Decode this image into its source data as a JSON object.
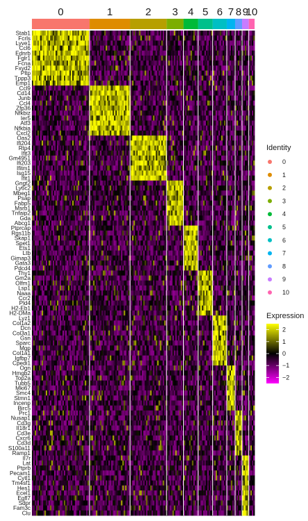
{
  "chart_data": {
    "type": "heatmap",
    "title": "",
    "xlabel": "",
    "ylabel": "",
    "clusters": [
      {
        "label": "0",
        "color": "#F8766D",
        "width_fraction": 0.249
      },
      {
        "label": "1",
        "color": "#DE8C00",
        "width_fraction": 0.175
      },
      {
        "label": "2",
        "color": "#B79F00",
        "width_fraction": 0.158
      },
      {
        "label": "3",
        "color": "#7CAE00",
        "width_fraction": 0.073
      },
      {
        "label": "4",
        "color": "#00BA38",
        "width_fraction": 0.063
      },
      {
        "label": "5",
        "color": "#00C08B",
        "width_fraction": 0.063
      },
      {
        "label": "6",
        "color": "#00BFC4",
        "width_fraction": 0.061
      },
      {
        "label": "7",
        "color": "#00B4F0",
        "width_fraction": 0.036
      },
      {
        "label": "8",
        "color": "#619CFF",
        "width_fraction": 0.03
      },
      {
        "label": "9",
        "color": "#C77CFF",
        "width_fraction": 0.029
      },
      {
        "label": "10",
        "color": "#FF64B0",
        "width_fraction": 0.025
      }
    ],
    "gene_groups": [
      {
        "cluster": "0",
        "genes": [
          "Stab1",
          "Fcrls",
          "Lyve1",
          "Ccl6",
          "Ednrb",
          "Fglr1",
          "Fcna",
          "Fxyd2",
          "Pltp",
          "Tppp3",
          "Emp1"
        ]
      },
      {
        "cluster": "1",
        "genes": [
          "Ccl9",
          "Cd14",
          "Junb",
          "Ccl4",
          "Zfp36",
          "Nfkbiz",
          "Ier5",
          "Atf3",
          "Nfkbia",
          "Cxcl2"
        ]
      },
      {
        "cluster": "2",
        "genes": [
          "Oas2",
          "Ifi204",
          "Rtp4",
          "Ifit3",
          "Gm4951",
          "Ifi203",
          "Ifitm1",
          "Isg15",
          "Ifit1"
        ]
      },
      {
        "cluster": "3",
        "genes": [
          "Gngt2",
          "Ly6c2",
          "Mbeg1",
          "Psap",
          "Fabp5",
          "Msrb1",
          "Tnfaip2",
          "Gda",
          "Abcg1"
        ]
      },
      {
        "cluster": "4",
        "genes": [
          "Ptprcap",
          "Rgs11b",
          "Skap1",
          "Spet1",
          "Ets1",
          "Ltb",
          "Gimap3",
          "Gata3",
          "Pdcd4"
        ]
      },
      {
        "cluster": "5",
        "genes": [
          "Thy1",
          "Gm2a",
          "Olfm1",
          "Lsp1",
          "Naaa",
          "Ccr2",
          "Pld4",
          "H2-Eb1",
          "H2-DMa"
        ]
      },
      {
        "cluster": "6",
        "genes": [
          "Lyz1",
          "Col1a2",
          "Dcn",
          "Col3a1",
          "Gsn",
          "Sparc",
          "Mgp",
          "Col1a1",
          "Igfbp7",
          "Cpedi1"
        ]
      },
      {
        "cluster": "7",
        "genes": [
          "Ogn",
          "Hmgb2",
          "Top2a",
          "Tubb5",
          "Mki67",
          "Smc4",
          "Stmn1",
          "Incenp",
          "Birc5"
        ]
      },
      {
        "cluster": "8",
        "genes": [
          "Prc1",
          "Nusap1",
          "Cd3g",
          "Il18r1",
          "Cd3e",
          "Cxcr6",
          "Cd3d",
          "S100a11",
          "Ramp1"
        ]
      },
      {
        "cluster": "9",
        "genes": [
          "Il7r",
          "Lat",
          "Ptprb",
          "Pecam1",
          "Cytl1",
          "Tm4sf1",
          "Hes1",
          "Ecel1",
          "Egfl7",
          "Sdpr",
          "Fam3c",
          "Clu"
        ]
      }
    ],
    "gene_group_cluster_positions": [
      0,
      1,
      2,
      3,
      4,
      5,
      6,
      7,
      8,
      9
    ],
    "legend_identity": {
      "title": "Identity",
      "labels": [
        "0",
        "1",
        "2",
        "3",
        "4",
        "5",
        "6",
        "7",
        "8",
        "9",
        "10"
      ],
      "colors": [
        "#F8766D",
        "#DE8C00",
        "#B79F00",
        "#7CAE00",
        "#00BA38",
        "#00C08B",
        "#00BFC4",
        "#00B4F0",
        "#619CFF",
        "#C77CFF",
        "#FF64B0"
      ]
    },
    "legend_expression": {
      "title": "Expression",
      "ticks": [
        2,
        1,
        0,
        -1,
        -2
      ],
      "tick_labels": [
        "2",
        "1",
        "0",
        "−1",
        "−2"
      ],
      "range": [
        -2.5,
        2.5
      ],
      "colors": [
        "#FF00FF",
        "#000000",
        "#FFFF00"
      ]
    }
  }
}
